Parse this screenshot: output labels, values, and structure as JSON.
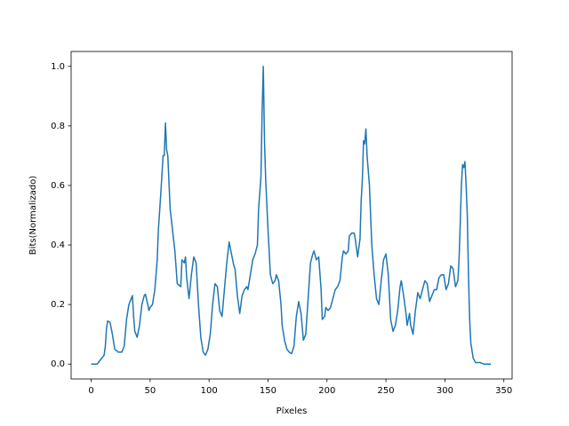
{
  "chart_data": {
    "type": "line",
    "xlabel": "Píxeles",
    "ylabel": "Bits(Normalizado)",
    "x": [
      0,
      5,
      7,
      9,
      11,
      12,
      13,
      14,
      16,
      18,
      20,
      23,
      26,
      28,
      30,
      32,
      35,
      36,
      37,
      39,
      41,
      43,
      45,
      46,
      48,
      49,
      50,
      52,
      54,
      56,
      57,
      59,
      61,
      62,
      63,
      64,
      65,
      67,
      69,
      71,
      73,
      76,
      77,
      79,
      80,
      81,
      83,
      85,
      87,
      89,
      91,
      93,
      95,
      97,
      99,
      101,
      103,
      105,
      107,
      109,
      111,
      113,
      115,
      117,
      119,
      121,
      122,
      124,
      126,
      128,
      130,
      132,
      133,
      135,
      137,
      139,
      141,
      142,
      144,
      145,
      146,
      147,
      148,
      150,
      152,
      154,
      156,
      157,
      159,
      161,
      162,
      164,
      166,
      168,
      170,
      172,
      174,
      176,
      178,
      180,
      182,
      184,
      186,
      188,
      189,
      191,
      193,
      195,
      196,
      198,
      199,
      201,
      203,
      205,
      207,
      209,
      211,
      213,
      214,
      216,
      218,
      219,
      221,
      223,
      224,
      226,
      228,
      229,
      230,
      231,
      232,
      233,
      234,
      236,
      238,
      240,
      242,
      244,
      246,
      248,
      250,
      252,
      254,
      256,
      258,
      260,
      262,
      263,
      265,
      267,
      268,
      270,
      271,
      273,
      275,
      277,
      279,
      281,
      283,
      285,
      287,
      289,
      291,
      293,
      295,
      297,
      299,
      301,
      303,
      305,
      307,
      309,
      311,
      312,
      313,
      314,
      315,
      316,
      317,
      318,
      319,
      320,
      321,
      322,
      324,
      326,
      330,
      333,
      339
    ],
    "series": [
      {
        "color": "#1f77b4",
        "values": [
          0,
          0,
          0.01,
          0.02,
          0.03,
          0.06,
          0.12,
          0.145,
          0.14,
          0.1,
          0.05,
          0.04,
          0.04,
          0.06,
          0.15,
          0.2,
          0.23,
          0.16,
          0.11,
          0.09,
          0.13,
          0.2,
          0.23,
          0.235,
          0.2,
          0.18,
          0.19,
          0.2,
          0.25,
          0.35,
          0.45,
          0.57,
          0.7,
          0.7,
          0.81,
          0.72,
          0.7,
          0.52,
          0.45,
          0.38,
          0.27,
          0.26,
          0.35,
          0.34,
          0.36,
          0.29,
          0.22,
          0.3,
          0.36,
          0.34,
          0.2,
          0.09,
          0.04,
          0.03,
          0.05,
          0.1,
          0.2,
          0.27,
          0.26,
          0.18,
          0.16,
          0.25,
          0.34,
          0.41,
          0.37,
          0.33,
          0.32,
          0.23,
          0.17,
          0.23,
          0.25,
          0.26,
          0.25,
          0.3,
          0.35,
          0.37,
          0.4,
          0.52,
          0.63,
          0.85,
          1.0,
          0.75,
          0.62,
          0.45,
          0.3,
          0.27,
          0.28,
          0.3,
          0.28,
          0.2,
          0.13,
          0.08,
          0.05,
          0.04,
          0.035,
          0.06,
          0.16,
          0.21,
          0.17,
          0.08,
          0.1,
          0.22,
          0.34,
          0.37,
          0.38,
          0.35,
          0.36,
          0.25,
          0.15,
          0.16,
          0.19,
          0.18,
          0.19,
          0.22,
          0.25,
          0.26,
          0.28,
          0.36,
          0.38,
          0.37,
          0.38,
          0.43,
          0.44,
          0.44,
          0.42,
          0.36,
          0.42,
          0.55,
          0.62,
          0.75,
          0.74,
          0.79,
          0.7,
          0.6,
          0.4,
          0.3,
          0.22,
          0.2,
          0.28,
          0.35,
          0.37,
          0.3,
          0.15,
          0.11,
          0.13,
          0.18,
          0.26,
          0.28,
          0.23,
          0.17,
          0.13,
          0.17,
          0.13,
          0.1,
          0.18,
          0.24,
          0.22,
          0.25,
          0.28,
          0.27,
          0.21,
          0.23,
          0.25,
          0.25,
          0.29,
          0.3,
          0.3,
          0.25,
          0.27,
          0.33,
          0.32,
          0.26,
          0.28,
          0.35,
          0.47,
          0.6,
          0.67,
          0.66,
          0.68,
          0.6,
          0.5,
          0.3,
          0.15,
          0.07,
          0.02,
          0.005,
          0.005,
          0,
          0
        ]
      }
    ],
    "xlim": [
      -17,
      357
    ],
    "xticks": [
      0,
      50,
      100,
      150,
      200,
      250,
      300,
      350
    ],
    "ylim": [
      -0.05,
      1.05
    ],
    "yticks": [
      {
        "value": 0,
        "label": "0.0"
      },
      {
        "value": 0.2,
        "label": "0.2"
      },
      {
        "value": 0.4,
        "label": "0.4"
      },
      {
        "value": 0.6,
        "label": "0.6"
      },
      {
        "value": 0.8,
        "label": "0.8"
      },
      {
        "value": 1,
        "label": "1.0"
      }
    ]
  }
}
